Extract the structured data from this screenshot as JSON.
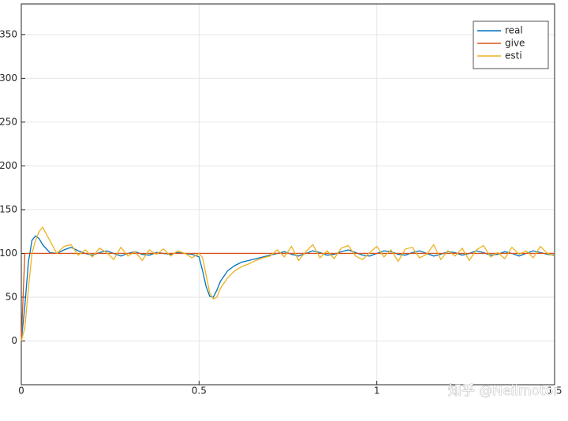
{
  "chart_data": {
    "type": "line",
    "x": [
      0,
      0.01,
      0.02,
      0.03,
      0.04,
      0.05,
      0.06,
      0.08,
      0.1,
      0.12,
      0.14,
      0.16,
      0.18,
      0.2,
      0.22,
      0.24,
      0.26,
      0.28,
      0.3,
      0.32,
      0.34,
      0.36,
      0.38,
      0.4,
      0.42,
      0.44,
      0.46,
      0.48,
      0.5,
      0.51,
      0.52,
      0.53,
      0.54,
      0.55,
      0.56,
      0.58,
      0.6,
      0.62,
      0.64,
      0.66,
      0.68,
      0.7,
      0.72,
      0.74,
      0.76,
      0.78,
      0.8,
      0.82,
      0.84,
      0.86,
      0.88,
      0.9,
      0.92,
      0.94,
      0.96,
      0.98,
      1,
      1.02,
      1.04,
      1.06,
      1.08,
      1.1,
      1.12,
      1.14,
      1.16,
      1.18,
      1.2,
      1.22,
      1.24,
      1.26,
      1.28,
      1.3,
      1.32,
      1.34,
      1.36,
      1.38,
      1.4,
      1.42,
      1.44,
      1.46,
      1.48,
      1.5
    ],
    "series": [
      {
        "name": "real",
        "color": "#0072BD",
        "values": [
          0,
          40,
          90,
          115,
          120,
          117,
          110,
          101,
          100,
          104,
          107,
          103,
          100,
          98,
          101,
          103,
          100,
          97,
          100,
          102,
          99,
          98,
          101,
          100,
          99,
          101,
          100,
          99,
          96,
          80,
          62,
          51,
          50,
          58,
          68,
          80,
          86,
          90,
          92,
          94,
          96,
          98,
          100,
          102,
          99,
          97,
          100,
          103,
          101,
          98,
          99,
          102,
          104,
          101,
          98,
          97,
          100,
          103,
          102,
          99,
          98,
          101,
          103,
          100,
          97,
          99,
          102,
          101,
          98,
          100,
          103,
          101,
          98,
          99,
          102,
          100,
          97,
          100,
          103,
          101,
          99,
          98
        ]
      },
      {
        "name": "give",
        "color": "#D95319",
        "values": [
          0,
          100,
          100,
          100,
          100,
          100,
          100,
          100,
          100,
          100,
          100,
          100,
          100,
          100,
          100,
          100,
          100,
          100,
          100,
          100,
          100,
          100,
          100,
          100,
          100,
          100,
          100,
          100,
          100,
          100,
          100,
          100,
          100,
          100,
          100,
          100,
          100,
          100,
          100,
          100,
          100,
          100,
          100,
          100,
          100,
          100,
          100,
          100,
          100,
          100,
          100,
          100,
          100,
          100,
          100,
          100,
          100,
          100,
          100,
          100,
          100,
          100,
          100,
          100,
          100,
          100,
          100,
          100,
          100,
          100,
          100,
          100,
          100,
          100,
          100,
          100,
          100,
          100,
          100,
          100,
          100,
          100
        ]
      },
      {
        "name": "esti",
        "color": "#EDB120",
        "values": [
          0,
          15,
          60,
          100,
          115,
          125,
          130,
          115,
          100,
          108,
          110,
          98,
          104,
          96,
          106,
          101,
          93,
          107,
          97,
          102,
          92,
          104,
          99,
          105,
          97,
          103,
          100,
          95,
          100,
          95,
          75,
          55,
          48,
          50,
          60,
          72,
          80,
          85,
          88,
          92,
          95,
          97,
          104,
          96,
          108,
          92,
          102,
          110,
          95,
          103,
          94,
          106,
          109,
          97,
          93,
          101,
          108,
          96,
          104,
          91,
          105,
          107,
          95,
          99,
          110,
          93,
          103,
          97,
          106,
          92,
          104,
          109,
          96,
          101,
          94,
          107,
          99,
          103,
          95,
          108,
          100,
          97
        ]
      }
    ],
    "xlim": [
      0,
      1.5
    ],
    "xticks": [
      0,
      0.5,
      1,
      1.5
    ],
    "ylim": [
      -50,
      385
    ],
    "yticks": [
      0,
      50,
      100,
      150,
      200,
      250,
      300,
      350
    ],
    "grid": true,
    "legend": "northeast",
    "watermark": "知乎 @Neilmotor"
  }
}
